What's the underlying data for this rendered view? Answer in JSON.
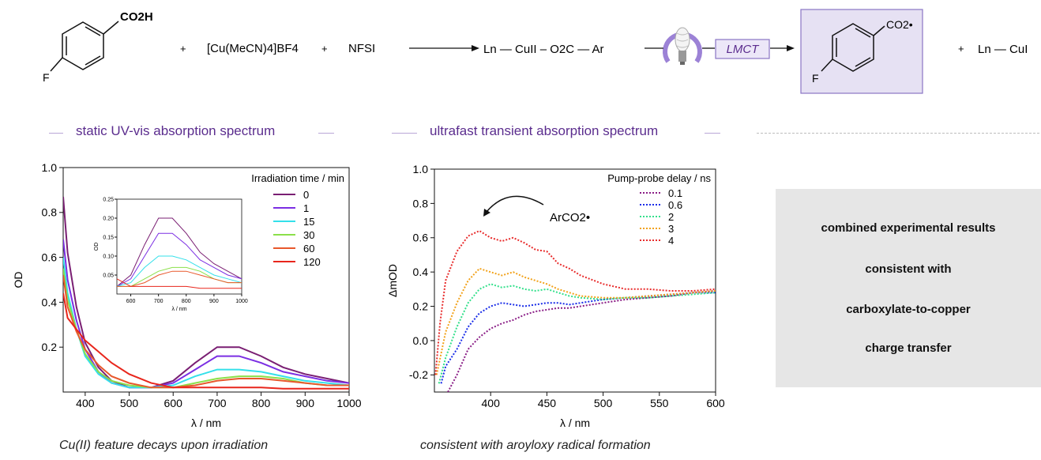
{
  "scheme": {
    "reactant_acid": "CO2H",
    "reactant_acid_sub": "2",
    "reactant_f": "F",
    "plus": "+",
    "copper_salt": "[Cu(MeCN)4]BF4",
    "nfsi": "NFSI",
    "intermediate": "Ln — CuII – O2C — Ar",
    "lmct_label": "LMCT",
    "radical_label": "CO2•",
    "product_f": "F",
    "copper_product": "Ln — CuI",
    "colors": {
      "accent": "#5b2d8e",
      "box_fill": "#e6e1f3",
      "box_stroke": "#8a75c4"
    }
  },
  "sections": {
    "left_title": "static UV-vis absorption spectrum",
    "middle_title": "ultrafast transient absorption spectrum"
  },
  "captions": {
    "left": "Cu(II) feature decays upon irradiation",
    "middle": "consistent with aroyloxy radical formation"
  },
  "conclusion": {
    "lines": [
      "combined experimental results",
      "consistent with",
      "carboxylate-to-copper",
      "charge transfer"
    ]
  },
  "chart_data": [
    {
      "type": "line",
      "id": "uvvis",
      "xlabel": "λ / nm",
      "ylabel": "OD",
      "xlim": [
        350,
        1000
      ],
      "ylim": [
        0,
        1.0
      ],
      "xticks": [
        400,
        500,
        600,
        700,
        800,
        900,
        1000
      ],
      "yticks": [
        0.2,
        0.4,
        0.6,
        0.8,
        1.0
      ],
      "ytick_labels": [
        "0.2",
        "0.4",
        "0.6",
        "0.8",
        "1.0"
      ],
      "legend_title": "Irradiation time / min",
      "legend_position": "top-right",
      "series": [
        {
          "name": "0",
          "color": "#7a1f73",
          "x": [
            350,
            360,
            380,
            400,
            430,
            460,
            500,
            550,
            600,
            650,
            700,
            750,
            800,
            850,
            900,
            950,
            1000
          ],
          "y": [
            0.87,
            0.62,
            0.38,
            0.22,
            0.11,
            0.05,
            0.02,
            0.02,
            0.05,
            0.13,
            0.2,
            0.2,
            0.16,
            0.11,
            0.08,
            0.06,
            0.04
          ]
        },
        {
          "name": "1",
          "color": "#7b2ee3",
          "x": [
            350,
            360,
            380,
            400,
            430,
            460,
            500,
            550,
            600,
            650,
            700,
            750,
            800,
            850,
            900,
            950,
            1000
          ],
          "y": [
            0.68,
            0.5,
            0.32,
            0.19,
            0.09,
            0.04,
            0.02,
            0.02,
            0.04,
            0.1,
            0.16,
            0.16,
            0.13,
            0.09,
            0.07,
            0.05,
            0.04
          ]
        },
        {
          "name": "15",
          "color": "#34e0ea",
          "x": [
            350,
            360,
            380,
            400,
            430,
            460,
            500,
            550,
            600,
            650,
            700,
            750,
            800,
            850,
            900,
            950,
            1000
          ],
          "y": [
            0.6,
            0.44,
            0.28,
            0.16,
            0.08,
            0.04,
            0.02,
            0.02,
            0.03,
            0.07,
            0.1,
            0.1,
            0.09,
            0.07,
            0.05,
            0.04,
            0.03
          ]
        },
        {
          "name": "30",
          "color": "#8be04a",
          "x": [
            350,
            360,
            380,
            400,
            430,
            460,
            500,
            550,
            600,
            650,
            700,
            750,
            800,
            850,
            900,
            950,
            1000
          ],
          "y": [
            0.55,
            0.41,
            0.28,
            0.17,
            0.09,
            0.05,
            0.03,
            0.02,
            0.02,
            0.04,
            0.06,
            0.07,
            0.07,
            0.06,
            0.04,
            0.03,
            0.03
          ]
        },
        {
          "name": "60",
          "color": "#e8582c",
          "x": [
            350,
            360,
            380,
            400,
            430,
            460,
            500,
            550,
            600,
            650,
            700,
            750,
            800,
            850,
            900,
            950,
            1000
          ],
          "y": [
            0.52,
            0.38,
            0.27,
            0.19,
            0.12,
            0.07,
            0.04,
            0.02,
            0.02,
            0.03,
            0.05,
            0.06,
            0.06,
            0.05,
            0.04,
            0.03,
            0.03
          ]
        },
        {
          "name": "120",
          "color": "#e8261c",
          "x": [
            350,
            360,
            380,
            400,
            430,
            460,
            500,
            550,
            600,
            650,
            700,
            750,
            800,
            850,
            900,
            950,
            1000
          ],
          "y": [
            0.44,
            0.33,
            0.28,
            0.23,
            0.18,
            0.13,
            0.08,
            0.04,
            0.02,
            0.02,
            0.02,
            0.02,
            0.02,
            0.015,
            0.015,
            0.015,
            0.015
          ]
        }
      ],
      "inset": {
        "type": "line",
        "xlabel": "λ / nm",
        "ylabel": "OD",
        "xlim": [
          550,
          1000
        ],
        "ylim": [
          0,
          0.25
        ],
        "xticks": [
          600,
          700,
          800,
          900,
          1000
        ],
        "yticks": [
          0.05,
          0.1,
          0.15,
          0.2,
          0.25
        ],
        "ytick_labels": [
          "0.05",
          "0.10",
          "0.15",
          "0.20",
          "0.25"
        ]
      }
    },
    {
      "type": "line",
      "id": "transient",
      "xlabel": "λ / nm",
      "ylabel": "ΔmOD",
      "xlim": [
        350,
        600
      ],
      "ylim": [
        -0.3,
        1.0
      ],
      "xticks": [
        400,
        450,
        500,
        550,
        600
      ],
      "yticks": [
        -0.2,
        0.0,
        0.2,
        0.4,
        0.6,
        0.8,
        1.0
      ],
      "ytick_labels": [
        "-0.2",
        "0.0",
        "0.2",
        "0.4",
        "0.6",
        "0.8",
        "1.0"
      ],
      "legend_title": "Pump-probe delay / ns",
      "legend_position": "top-right",
      "annotation": "ArCO2•",
      "series": [
        {
          "name": "0.1",
          "color": "#8a1d86",
          "x": [
            362,
            370,
            380,
            390,
            400,
            410,
            420,
            430,
            440,
            450,
            460,
            470,
            480,
            500,
            520,
            540,
            560,
            580,
            600
          ],
          "y": [
            -0.3,
            -0.2,
            -0.05,
            0.02,
            0.07,
            0.1,
            0.12,
            0.15,
            0.17,
            0.18,
            0.19,
            0.19,
            0.2,
            0.22,
            0.24,
            0.25,
            0.26,
            0.28,
            0.29
          ]
        },
        {
          "name": "0.6",
          "color": "#1a2de8",
          "x": [
            356,
            360,
            370,
            380,
            390,
            400,
            410,
            420,
            430,
            440,
            450,
            460,
            470,
            480,
            500,
            520,
            540,
            560,
            580,
            600
          ],
          "y": [
            -0.25,
            -0.15,
            -0.05,
            0.08,
            0.16,
            0.2,
            0.22,
            0.21,
            0.2,
            0.21,
            0.22,
            0.22,
            0.21,
            0.22,
            0.24,
            0.25,
            0.26,
            0.27,
            0.28,
            0.28
          ]
        },
        {
          "name": "2",
          "color": "#34e08c",
          "x": [
            354,
            360,
            370,
            380,
            390,
            400,
            410,
            420,
            430,
            440,
            450,
            460,
            470,
            480,
            500,
            520,
            540,
            560,
            580,
            600
          ],
          "y": [
            -0.25,
            -0.1,
            0.08,
            0.22,
            0.3,
            0.33,
            0.31,
            0.32,
            0.3,
            0.29,
            0.3,
            0.28,
            0.26,
            0.25,
            0.24,
            0.25,
            0.25,
            0.26,
            0.27,
            0.28
          ]
        },
        {
          "name": "3",
          "color": "#f2a21a",
          "x": [
            352,
            360,
            370,
            380,
            390,
            400,
            410,
            420,
            430,
            440,
            450,
            460,
            470,
            480,
            500,
            520,
            540,
            560,
            580,
            600
          ],
          "y": [
            -0.2,
            0.05,
            0.22,
            0.35,
            0.42,
            0.4,
            0.38,
            0.4,
            0.37,
            0.35,
            0.33,
            0.3,
            0.28,
            0.26,
            0.25,
            0.25,
            0.26,
            0.27,
            0.28,
            0.29
          ]
        },
        {
          "name": "4",
          "color": "#e82c2c",
          "x": [
            351,
            355,
            360,
            370,
            380,
            390,
            400,
            410,
            420,
            430,
            440,
            450,
            460,
            470,
            480,
            500,
            520,
            540,
            560,
            580,
            600
          ],
          "y": [
            -0.2,
            0.1,
            0.35,
            0.52,
            0.61,
            0.64,
            0.6,
            0.58,
            0.6,
            0.57,
            0.53,
            0.52,
            0.45,
            0.42,
            0.38,
            0.33,
            0.3,
            0.3,
            0.29,
            0.29,
            0.3
          ]
        }
      ]
    }
  ]
}
